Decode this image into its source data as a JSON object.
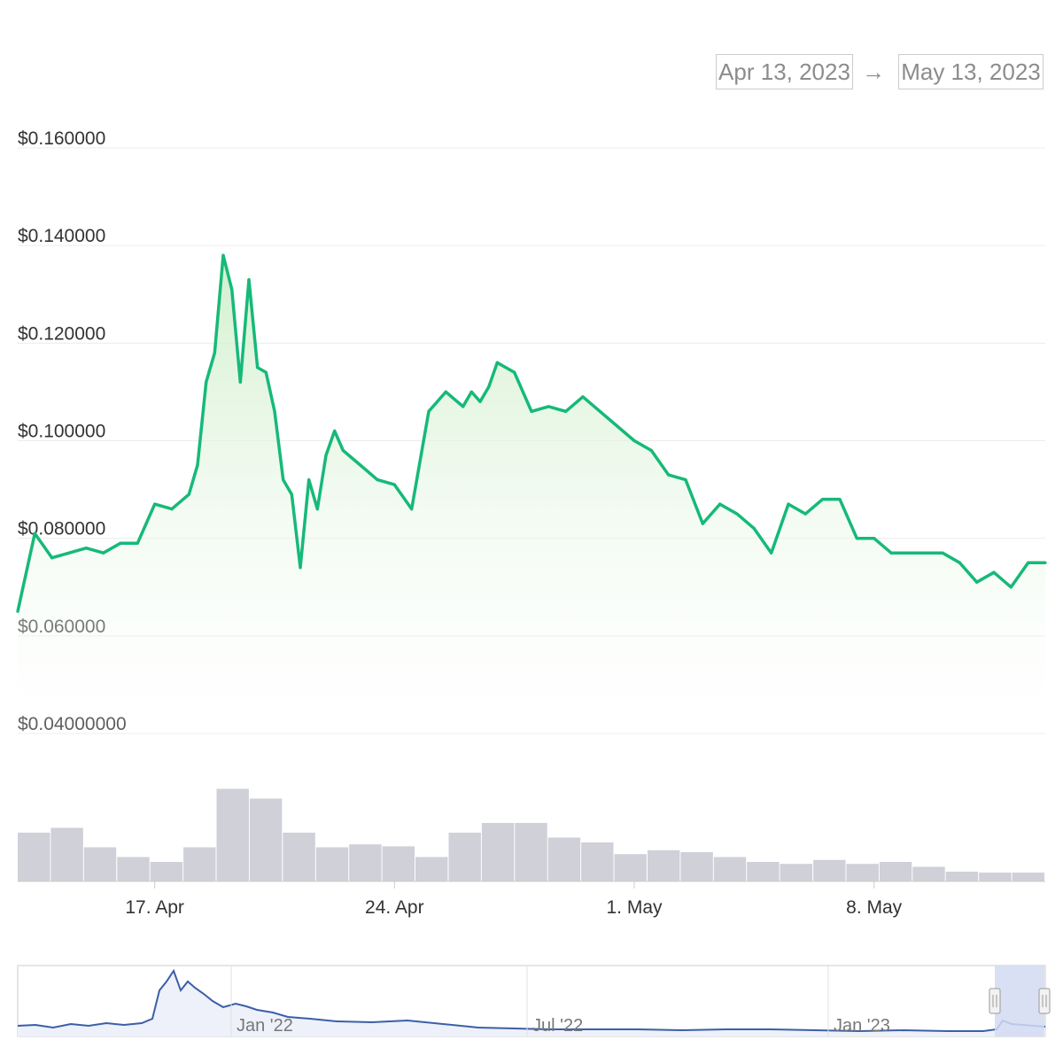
{
  "range_selector": {
    "from": "Apr 13, 2023",
    "arrow": "→",
    "to": "May 13, 2023"
  },
  "colors": {
    "price_line": "#16b979",
    "area_fill": "#d9f2d4",
    "volume": "#cfd0d8",
    "navigator_line": "#3b5fa8",
    "navigator_fill": "#eef1fa",
    "navigator_mask": "#d3dbf2"
  },
  "chart_data": {
    "type": "line",
    "y_axis": {
      "ticks": [
        0.04,
        0.06,
        0.08,
        0.1,
        0.12,
        0.14,
        0.16
      ],
      "tick_labels": [
        "$0.04000000",
        "$0.060000",
        "$0.080000",
        "$0.100000",
        "$0.120000",
        "$0.140000",
        "$0.160000"
      ],
      "ylim": [
        0.04,
        0.16
      ]
    },
    "x_axis": {
      "range": [
        "2023-04-13",
        "2023-05-13"
      ],
      "tick_labels": [
        {
          "date": "2023-04-17",
          "label": "17. Apr"
        },
        {
          "date": "2023-04-24",
          "label": "24. Apr"
        },
        {
          "date": "2023-05-01",
          "label": "1. May"
        },
        {
          "date": "2023-05-08",
          "label": "8. May"
        }
      ]
    },
    "series": [
      {
        "x": [
          "2023-04-13",
          "2023-04-13T12:00",
          "2023-04-14",
          "2023-04-14T12:00",
          "2023-04-15",
          "2023-04-15T12:00",
          "2023-04-16",
          "2023-04-16T12:00",
          "2023-04-17",
          "2023-04-17T12:00",
          "2023-04-18",
          "2023-04-18T06:00",
          "2023-04-18T12:00",
          "2023-04-18T18:00",
          "2023-04-19",
          "2023-04-19T06:00",
          "2023-04-19T12:00",
          "2023-04-19T18:00",
          "2023-04-20",
          "2023-04-20T06:00",
          "2023-04-20T12:00",
          "2023-04-20T18:00",
          "2023-04-21",
          "2023-04-21T06:00",
          "2023-04-21T12:00",
          "2023-04-21T18:00",
          "2023-04-22",
          "2023-04-22T06:00",
          "2023-04-22T12:00",
          "2023-04-23",
          "2023-04-23T12:00",
          "2023-04-24",
          "2023-04-24T12:00",
          "2023-04-25",
          "2023-04-25T12:00",
          "2023-04-26",
          "2023-04-26T06:00",
          "2023-04-26T12:00",
          "2023-04-26T18:00",
          "2023-04-27",
          "2023-04-27T12:00",
          "2023-04-28",
          "2023-04-28T12:00",
          "2023-04-29",
          "2023-04-29T12:00",
          "2023-04-30",
          "2023-04-30T12:00",
          "2023-05-01",
          "2023-05-01T12:00",
          "2023-05-02",
          "2023-05-02T12:00",
          "2023-05-03",
          "2023-05-03T12:00",
          "2023-05-04",
          "2023-05-04T12:00",
          "2023-05-05",
          "2023-05-05T12:00",
          "2023-05-06",
          "2023-05-06T12:00",
          "2023-05-07",
          "2023-05-07T12:00",
          "2023-05-08",
          "2023-05-08T12:00",
          "2023-05-09",
          "2023-05-09T12:00",
          "2023-05-10",
          "2023-05-10T12:00",
          "2023-05-11",
          "2023-05-11T12:00",
          "2023-05-12",
          "2023-05-12T12:00",
          "2023-05-13"
        ],
        "y": [
          0.065,
          0.081,
          0.076,
          0.077,
          0.078,
          0.077,
          0.079,
          0.079,
          0.087,
          0.086,
          0.089,
          0.095,
          0.112,
          0.118,
          0.138,
          0.131,
          0.112,
          0.133,
          0.115,
          0.114,
          0.106,
          0.092,
          0.089,
          0.074,
          0.092,
          0.086,
          0.097,
          0.102,
          0.098,
          0.095,
          0.092,
          0.091,
          0.086,
          0.106,
          0.11,
          0.107,
          0.11,
          0.108,
          0.111,
          0.116,
          0.114,
          0.106,
          0.107,
          0.106,
          0.109,
          0.106,
          0.103,
          0.1,
          0.098,
          0.093,
          0.092,
          0.083,
          0.087,
          0.085,
          0.082,
          0.077,
          0.087,
          0.085,
          0.088,
          0.088,
          0.08,
          0.08,
          0.077,
          0.077,
          0.077,
          0.077,
          0.075,
          0.071,
          0.073,
          0.07,
          0.075,
          0.075
        ]
      }
    ],
    "volume": {
      "x": [
        "2023-04-13",
        "2023-04-14",
        "2023-04-15",
        "2023-04-16",
        "2023-04-17",
        "2023-04-18",
        "2023-04-19",
        "2023-04-20",
        "2023-04-21",
        "2023-04-22",
        "2023-04-23",
        "2023-04-24",
        "2023-04-25",
        "2023-04-26",
        "2023-04-27",
        "2023-04-28",
        "2023-04-29",
        "2023-04-30",
        "2023-05-01",
        "2023-05-02",
        "2023-05-03",
        "2023-05-04",
        "2023-05-05",
        "2023-05-06",
        "2023-05-07",
        "2023-05-08",
        "2023-05-09",
        "2023-05-10",
        "2023-05-11",
        "2023-05-12",
        "2023-05-13"
      ],
      "relative": [
        0.5,
        0.55,
        0.35,
        0.25,
        0.2,
        0.35,
        0.95,
        0.85,
        0.5,
        0.35,
        0.38,
        0.36,
        0.25,
        0.5,
        0.6,
        0.6,
        0.45,
        0.4,
        0.28,
        0.32,
        0.3,
        0.25,
        0.2,
        0.18,
        0.22,
        0.18,
        0.2,
        0.15,
        0.1,
        0.09,
        0.09
      ]
    },
    "navigator": {
      "tick_labels": [
        "Jan '22",
        "Jul '22",
        "Jan '23"
      ]
    }
  }
}
